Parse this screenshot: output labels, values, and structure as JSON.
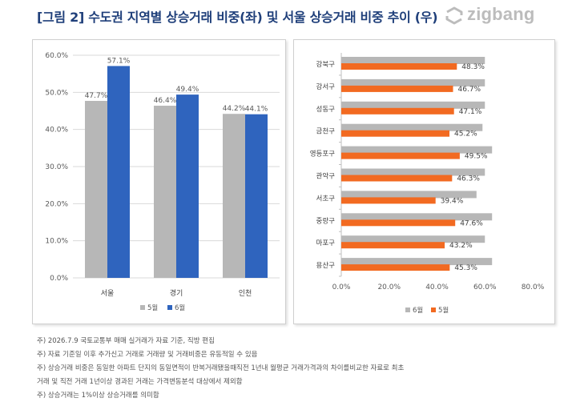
{
  "title": "[그림 2] 수도권 지역별 상승거래 비중(좌) 및 서울 상승거래 비중 추이 (우)",
  "logo": {
    "text": "zigbang"
  },
  "colors": {
    "gray": "#b7b7b7",
    "blue": "#2f64be",
    "orange": "#f26a21",
    "title": "#1f3f7a"
  },
  "chart_data": [
    {
      "type": "bar",
      "categories": [
        "서울",
        "경기",
        "인천"
      ],
      "series": [
        {
          "name": "5월",
          "values": [
            47.7,
            46.4,
            44.2
          ],
          "color": "#b7b7b7"
        },
        {
          "name": "6월",
          "values": [
            57.1,
            49.4,
            44.1
          ],
          "color": "#2f64be"
        }
      ],
      "ylim": [
        0,
        60
      ],
      "yticks": [
        "0.0%",
        "10.0%",
        "20.0%",
        "30.0%",
        "40.0%",
        "50.0%",
        "60.0%"
      ],
      "labels": [
        [
          "47.7%",
          "46.4%",
          "44.2%"
        ],
        [
          "57.1%",
          "49.4%",
          "44.1%"
        ]
      ],
      "legend": "bottom",
      "grid": true
    },
    {
      "type": "bar",
      "orientation": "horizontal",
      "categories": [
        "강북구",
        "강서구",
        "성동구",
        "금천구",
        "영등포구",
        "관악구",
        "서초구",
        "중랑구",
        "마포구",
        "용산구"
      ],
      "series": [
        {
          "name": "6월",
          "values": [
            60.0,
            60.0,
            60.0,
            59.0,
            63.0,
            60.0,
            56.5,
            63.0,
            60.0,
            63.0
          ],
          "color": "#b7b7b7"
        },
        {
          "name": "5월",
          "values": [
            48.3,
            46.7,
            47.1,
            45.2,
            49.5,
            46.3,
            39.4,
            47.6,
            43.2,
            45.3
          ],
          "color": "#f26a21"
        }
      ],
      "labels": [
        "48.3%",
        "46.7%",
        "47.1%",
        "45.2%",
        "49.5%",
        "46.3%",
        "39.4%",
        "47.6%",
        "43.2%",
        "45.3%"
      ],
      "xlim": [
        0,
        80
      ],
      "xticks": [
        "0.0%",
        "20.0%",
        "40.0%",
        "60.0%",
        "80.0%"
      ],
      "legend": "bottom",
      "grid": false
    }
  ],
  "notes": [
    "주) 2026.7.9 국토교통부 매매 실거래가 자료 기준, 직방 편집",
    "주) 자료 기준일 이후 추가신고 거래로 거래량 및 거래비중은 유동적일 수 있음",
    "주) 상승거래 비중은 동일한 아파트 단지의 동일면적이 반복거래됐을때직전 1년내 월평균 거래가격과의 차이를비교한 자료로 최초",
    "거래 및 직전 거래 1년이상 경과된 거래는 가격변동분석 대상에서 제외함",
    "주) 상승거래는 1%이상 상승거래를 의미함"
  ]
}
